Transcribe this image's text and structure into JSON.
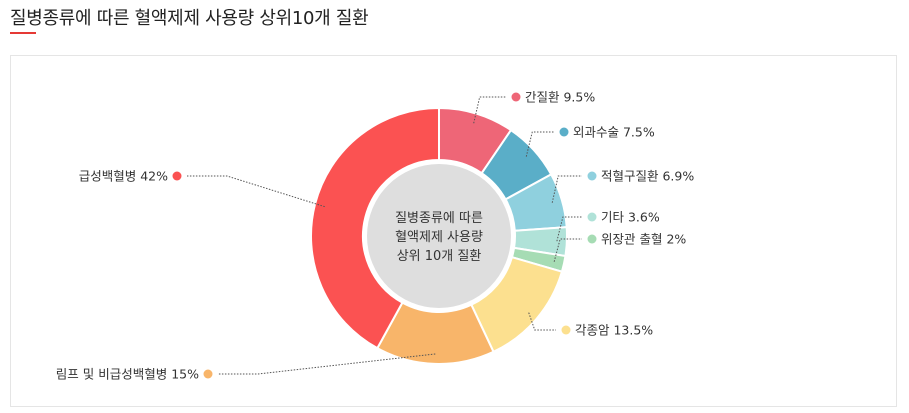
{
  "page": {
    "title": "질병종류에 따른 혈액제제 사용량 상위10개 질환"
  },
  "chart_data": {
    "type": "pie",
    "variant": "donut",
    "title": "질병종류에 따른 혈액제제 사용량 상위10개 질환",
    "center_label": [
      "질병종류에 따른",
      "혈액제제 사용량",
      "상위 10개 질환"
    ],
    "unit": "%",
    "legend": "none",
    "slices": [
      {
        "name": "간질환",
        "value": 9.5,
        "display": "9.5%",
        "color": "#ee6677"
      },
      {
        "name": "외과수술",
        "value": 7.5,
        "display": "7.5%",
        "color": "#5aaec8"
      },
      {
        "name": "적혈구질환",
        "value": 6.9,
        "display": "6.9%",
        "color": "#8fd0de"
      },
      {
        "name": "기타",
        "value": 3.6,
        "display": "3.6%",
        "color": "#b0e2d8"
      },
      {
        "name": "위장관 출혈",
        "value": 2,
        "display": "2%",
        "color": "#a6dcb4"
      },
      {
        "name": "각종암",
        "value": 13.5,
        "display": "13.5%",
        "color": "#fce08f"
      },
      {
        "name": "림프 및 비급성백혈병",
        "value": 15,
        "display": "15%",
        "color": "#f8b56a"
      },
      {
        "name": "급성백혈병",
        "value": 42,
        "display": "42%",
        "color": "#fb5252"
      }
    ]
  }
}
